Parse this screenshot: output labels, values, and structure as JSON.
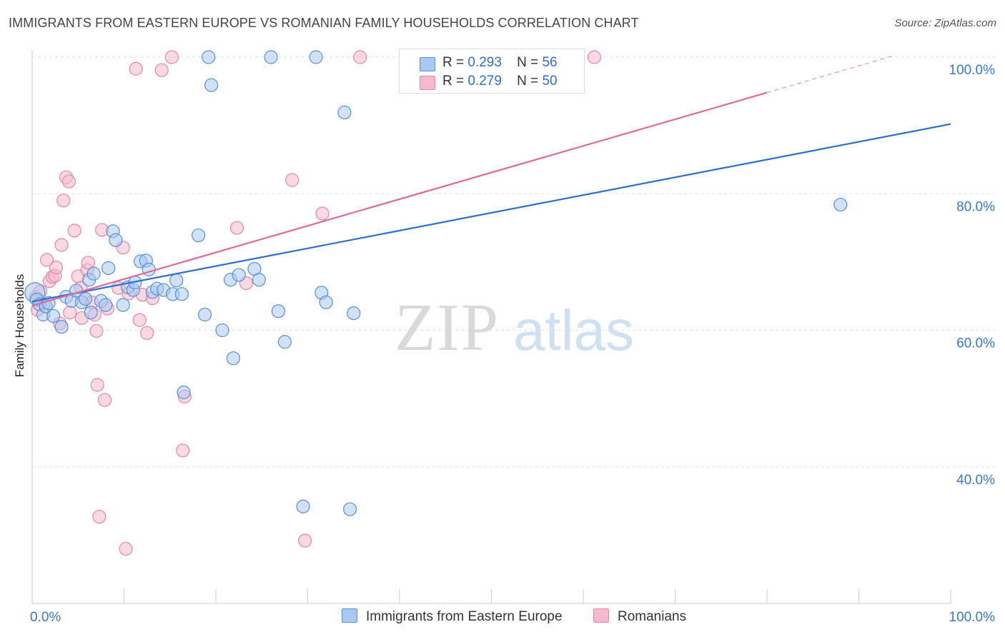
{
  "title": "IMMIGRANTS FROM EASTERN EUROPE VS ROMANIAN FAMILY HOUSEHOLDS CORRELATION CHART",
  "source": "Source: ZipAtlas.com",
  "watermark": {
    "zip": "ZIP",
    "atlas": "atlas"
  },
  "colors": {
    "blue_fill": "#a9c8f2",
    "blue_stroke": "#5b8fd6",
    "blue_line": "#2c6fce",
    "pink_fill": "#f7b9cc",
    "pink_stroke": "#e587a6",
    "pink_line": "#e06a94",
    "grid": "#e3e3e3",
    "tick_label": "#3a77d0"
  },
  "legend": {
    "rows": [
      {
        "r_label": "R =",
        "r_value": "0.293",
        "n_label": "N =",
        "n_value": "56"
      },
      {
        "r_label": "R =",
        "r_value": "0.279",
        "n_label": "N =",
        "n_value": "50"
      }
    ]
  },
  "chart_data": {
    "type": "scatter",
    "title": "IMMIGRANTS FROM EASTERN EUROPE VS ROMANIAN FAMILY HOUSEHOLDS CORRELATION CHART",
    "xlabel": "",
    "ylabel": "Family Households",
    "xlim": [
      0,
      100
    ],
    "ylim": [
      20,
      102
    ],
    "x_ticks": [
      0,
      100
    ],
    "x_tick_labels": [
      "0.0%",
      "100.0%"
    ],
    "y_ticks": [
      40,
      60,
      80,
      100
    ],
    "y_tick_labels": [
      "40.0%",
      "60.0%",
      "80.0%",
      "100.0%"
    ],
    "series": [
      {
        "name": "Immigrants from Eastern Europe",
        "color": "blue",
        "R": 0.293,
        "N": 56,
        "trend": {
          "x0": 0,
          "y0": 64.2,
          "x1": 100,
          "y1": 90.2
        },
        "points": [
          [
            0.3,
            65.5
          ],
          [
            0.5,
            64.5
          ],
          [
            0.8,
            63.8
          ],
          [
            1.2,
            62.3
          ],
          [
            1.5,
            63.5
          ],
          [
            1.8,
            64.0
          ],
          [
            2.3,
            62.1
          ],
          [
            3.2,
            60.5
          ],
          [
            3.7,
            64.9
          ],
          [
            4.3,
            64.3
          ],
          [
            4.8,
            65.8
          ],
          [
            5.4,
            64.1
          ],
          [
            5.8,
            64.6
          ],
          [
            6.2,
            67.4
          ],
          [
            6.4,
            62.6
          ],
          [
            6.7,
            68.3
          ],
          [
            7.5,
            64.3
          ],
          [
            8.0,
            63.7
          ],
          [
            8.3,
            69.1
          ],
          [
            8.8,
            74.5
          ],
          [
            9.1,
            73.2
          ],
          [
            9.9,
            63.7
          ],
          [
            10.4,
            66.3
          ],
          [
            11.0,
            65.9
          ],
          [
            11.2,
            67.0
          ],
          [
            11.8,
            70.1
          ],
          [
            12.4,
            70.2
          ],
          [
            12.7,
            68.9
          ],
          [
            13.1,
            65.6
          ],
          [
            13.6,
            66.1
          ],
          [
            14.3,
            65.9
          ],
          [
            15.3,
            65.3
          ],
          [
            15.7,
            67.3
          ],
          [
            16.3,
            65.3
          ],
          [
            16.5,
            50.9
          ],
          [
            18.1,
            73.9
          ],
          [
            18.8,
            62.3
          ],
          [
            19.2,
            100.0
          ],
          [
            19.5,
            95.9
          ],
          [
            20.7,
            60.0
          ],
          [
            21.6,
            67.4
          ],
          [
            21.9,
            55.9
          ],
          [
            22.5,
            68.1
          ],
          [
            24.2,
            69.0
          ],
          [
            24.7,
            67.4
          ],
          [
            26.0,
            100.0
          ],
          [
            26.8,
            62.8
          ],
          [
            27.5,
            58.3
          ],
          [
            29.5,
            34.2
          ],
          [
            30.9,
            100.0
          ],
          [
            31.5,
            65.5
          ],
          [
            32.0,
            64.1
          ],
          [
            34.0,
            91.9
          ],
          [
            34.6,
            33.8
          ],
          [
            35.0,
            62.5
          ],
          [
            88.0,
            78.4
          ]
        ]
      },
      {
        "name": "Romanians",
        "color": "pink",
        "R": 0.279,
        "N": 50,
        "trend": {
          "x0": 0,
          "y0": 63.6,
          "x1": 80,
          "y1": 94.8
        },
        "trend_dashed": {
          "x0": 80,
          "y0": 94.8,
          "x1": 94,
          "y1": 100.3
        },
        "points": [
          [
            0.4,
            64.8
          ],
          [
            0.6,
            63.0
          ],
          [
            0.9,
            65.7
          ],
          [
            1.3,
            63.9
          ],
          [
            1.6,
            70.3
          ],
          [
            1.9,
            67.2
          ],
          [
            2.2,
            67.8
          ],
          [
            2.5,
            68.0
          ],
          [
            2.6,
            69.2
          ],
          [
            3.0,
            61.0
          ],
          [
            3.2,
            72.5
          ],
          [
            3.4,
            79.0
          ],
          [
            3.7,
            82.4
          ],
          [
            4.0,
            81.8
          ],
          [
            4.1,
            62.6
          ],
          [
            4.6,
            74.6
          ],
          [
            5.0,
            67.9
          ],
          [
            5.3,
            66.2
          ],
          [
            5.4,
            61.8
          ],
          [
            5.8,
            64.6
          ],
          [
            6.0,
            68.8
          ],
          [
            6.1,
            69.9
          ],
          [
            6.5,
            64.1
          ],
          [
            6.8,
            62.3
          ],
          [
            7.0,
            59.9
          ],
          [
            7.1,
            52.0
          ],
          [
            7.3,
            32.7
          ],
          [
            7.6,
            74.7
          ],
          [
            7.9,
            49.8
          ],
          [
            8.2,
            63.2
          ],
          [
            9.4,
            66.2
          ],
          [
            9.9,
            72.1
          ],
          [
            10.2,
            28.0
          ],
          [
            10.5,
            65.4
          ],
          [
            11.3,
            98.3
          ],
          [
            11.7,
            61.5
          ],
          [
            12.0,
            65.2
          ],
          [
            12.5,
            59.6
          ],
          [
            13.1,
            64.7
          ],
          [
            14.1,
            98.1
          ],
          [
            15.2,
            100.0
          ],
          [
            16.4,
            42.4
          ],
          [
            16.6,
            50.3
          ],
          [
            22.3,
            75.0
          ],
          [
            23.3,
            66.9
          ],
          [
            28.3,
            82.0
          ],
          [
            29.7,
            29.2
          ],
          [
            31.6,
            77.1
          ],
          [
            35.7,
            100.0
          ],
          [
            61.2,
            100.0
          ]
        ]
      }
    ]
  }
}
